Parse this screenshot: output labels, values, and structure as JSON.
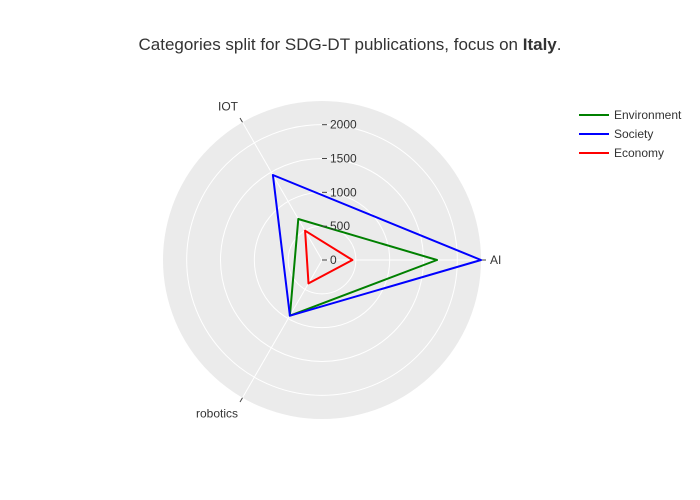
{
  "chart_data": {
    "type": "radar",
    "title": {
      "prefix": "Categories split for SDG-DT publications, focus on ",
      "bold": "Italy",
      "suffix": "."
    },
    "categories": [
      "AI",
      "IOT",
      "robotics"
    ],
    "radial_range": [
      0,
      2350
    ],
    "radial_ticks": [
      0,
      500,
      1000,
      1500,
      2000
    ],
    "radial_tick_labels": [
      "0",
      "500",
      "1000",
      "1500",
      "2000"
    ],
    "grid": true,
    "legend_position": "top-right",
    "series": [
      {
        "name": "Environment",
        "color": "#008000",
        "values": [
          1700,
          700,
          950
        ]
      },
      {
        "name": "Society",
        "color": "#0000ff",
        "values": [
          2350,
          1450,
          950
        ]
      },
      {
        "name": "Economy",
        "color": "#ff0000",
        "values": [
          450,
          500,
          400
        ]
      }
    ]
  }
}
